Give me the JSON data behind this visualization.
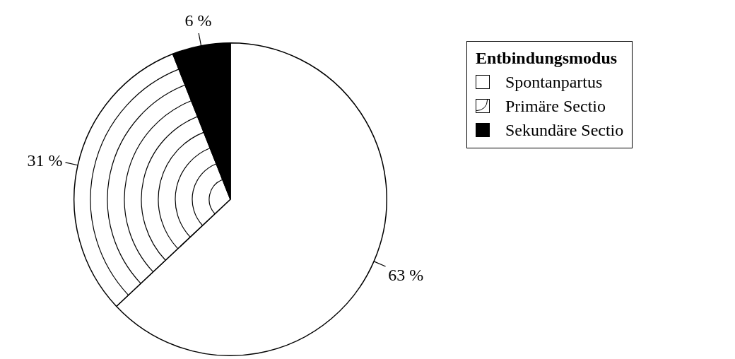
{
  "chart_data": {
    "type": "pie",
    "legend_title": "Entbindungsmodus",
    "legend": "right",
    "categories": [
      "Spontanpartus",
      "Primäre Sectio",
      "Sekundäre Sectio"
    ],
    "values": [
      63,
      31,
      6
    ],
    "colors": [
      "#ffffff",
      "#ffffff",
      "#000000"
    ],
    "value_labels": [
      "63 %",
      "31 %",
      "6 %"
    ]
  }
}
